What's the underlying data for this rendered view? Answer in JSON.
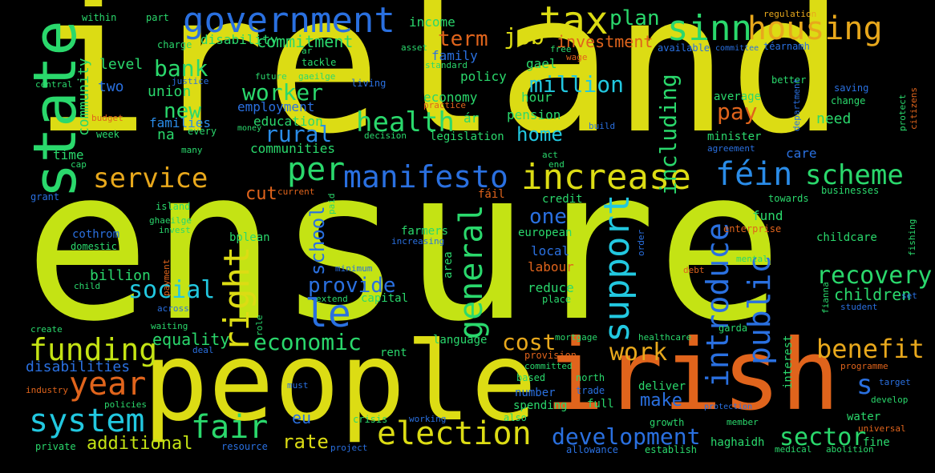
{
  "wordcloud": {
    "words": [
      {
        "text": "ireland",
        "color": "#dcdc14"
      },
      {
        "text": "ensure",
        "color": "#c4e314"
      },
      {
        "text": "people",
        "color": "#dcdc14"
      },
      {
        "text": "irish",
        "color": "#e0641c"
      },
      {
        "text": "state",
        "color": "#2ad86c"
      },
      {
        "text": "government",
        "color": "#2a70e0"
      },
      {
        "text": "tax",
        "color": "#dcdc14"
      },
      {
        "text": "sinn",
        "color": "#2ad86c"
      },
      {
        "text": "housing",
        "color": "#e8a81c"
      },
      {
        "text": "manifesto",
        "color": "#2a70e0"
      },
      {
        "text": "increase",
        "color": "#dcdc14"
      },
      {
        "text": "féin",
        "color": "#2a8ce8"
      },
      {
        "text": "scheme",
        "color": "#2ad86c"
      },
      {
        "text": "service",
        "color": "#e8a81c"
      },
      {
        "text": "per",
        "color": "#2ad86c"
      },
      {
        "text": "election",
        "color": "#dcdc14"
      },
      {
        "text": "fair",
        "color": "#2ad86c"
      },
      {
        "text": "system",
        "color": "#22c8e0"
      },
      {
        "text": "year",
        "color": "#e0641c"
      },
      {
        "text": "funding",
        "color": "#c4e314"
      },
      {
        "text": "health",
        "color": "#2ad86c"
      },
      {
        "text": "support",
        "color": "#22c8e0"
      },
      {
        "text": "introduce",
        "color": "#2a70e0"
      },
      {
        "text": "public",
        "color": "#2a70e0"
      },
      {
        "text": "le",
        "color": "#2a70e0"
      },
      {
        "text": "right",
        "color": "#dcdc14"
      },
      {
        "text": "general",
        "color": "#2ad86c"
      },
      {
        "text": "benefit",
        "color": "#e8a81c"
      },
      {
        "text": "work",
        "color": "#e8a81c"
      },
      {
        "text": "development",
        "color": "#2a70e0"
      },
      {
        "text": "sector",
        "color": "#2ad86c"
      },
      {
        "text": "recovery",
        "color": "#2ad86c"
      },
      {
        "text": "economic",
        "color": "#2ad86c"
      },
      {
        "text": "cost",
        "color": "#e8a81c"
      },
      {
        "text": "s",
        "color": "#2a70e0"
      },
      {
        "text": "social",
        "color": "#22c8e0"
      },
      {
        "text": "provide",
        "color": "#2a70e0"
      },
      {
        "text": "school",
        "color": "#2a70e0"
      },
      {
        "text": "million",
        "color": "#22c8e0"
      },
      {
        "text": "job",
        "color": "#dcdc14"
      },
      {
        "text": "plan",
        "color": "#2ad86c"
      },
      {
        "text": "term",
        "color": "#e0641c"
      },
      {
        "text": "bank",
        "color": "#2ad86c"
      },
      {
        "text": "worker",
        "color": "#2ad86c"
      },
      {
        "text": "new",
        "color": "#2ad86c"
      },
      {
        "text": "rural",
        "color": "#2a8ce8"
      },
      {
        "text": "pay",
        "color": "#e0641c"
      },
      {
        "text": "including",
        "color": "#2ad86c"
      },
      {
        "text": "commitment",
        "color": "#2ad86c"
      },
      {
        "text": "investment",
        "color": "#e0641c"
      },
      {
        "text": "home",
        "color": "#22c8e0"
      },
      {
        "text": "one",
        "color": "#2a70e0"
      },
      {
        "text": "cut",
        "color": "#e0641c"
      },
      {
        "text": "make",
        "color": "#2a70e0"
      },
      {
        "text": "rate",
        "color": "#dcdc14"
      },
      {
        "text": "additional",
        "color": "#c4e314"
      },
      {
        "text": "eu",
        "color": "#2a70e0"
      },
      {
        "text": "children",
        "color": "#2ad86c"
      },
      {
        "text": "disabilities",
        "color": "#2a70e0"
      },
      {
        "text": "equality",
        "color": "#2ad86c"
      },
      {
        "text": "billion",
        "color": "#2ad86c"
      },
      {
        "text": "community",
        "color": "#2ad86c"
      },
      {
        "text": "two",
        "color": "#2a70e0"
      },
      {
        "text": "union",
        "color": "#2ad86c"
      },
      {
        "text": "level",
        "color": "#2ad86c"
      },
      {
        "text": "disability",
        "color": "#2ad86c"
      },
      {
        "text": "families",
        "color": "#2a8ce8"
      },
      {
        "text": "education",
        "color": "#2ad86c"
      },
      {
        "text": "employment",
        "color": "#2a70e0"
      },
      {
        "text": "communities",
        "color": "#2ad86c"
      },
      {
        "text": "na",
        "color": "#2ad86c"
      },
      {
        "text": "time",
        "color": "#2ad86c"
      },
      {
        "text": "income",
        "color": "#2ad86c"
      },
      {
        "text": "family",
        "color": "#2a70e0"
      },
      {
        "text": "policy",
        "color": "#2ad86c"
      },
      {
        "text": "economy",
        "color": "#2ad86c"
      },
      {
        "text": "gael",
        "color": "#2ad86c"
      },
      {
        "text": "hour",
        "color": "#2ad86c"
      },
      {
        "text": "pension",
        "color": "#2ad86c"
      },
      {
        "text": "ár",
        "color": "#2ad86c"
      },
      {
        "text": "legislation",
        "color": "#2ad86c"
      },
      {
        "text": "need",
        "color": "#2ad86c"
      },
      {
        "text": "average",
        "color": "#2ad86c"
      },
      {
        "text": "minister",
        "color": "#2ad86c"
      },
      {
        "text": "care",
        "color": "#2a70e0"
      },
      {
        "text": "fund",
        "color": "#2ad86c"
      },
      {
        "text": "local",
        "color": "#2a70e0"
      },
      {
        "text": "labour",
        "color": "#e0641c"
      },
      {
        "text": "reduce",
        "color": "#2ad86c"
      },
      {
        "text": "european",
        "color": "#2ad86c"
      },
      {
        "text": "farmers",
        "color": "#2ad86c"
      },
      {
        "text": "credit",
        "color": "#2ad86c"
      },
      {
        "text": "capital",
        "color": "#2ad86c"
      },
      {
        "text": "language",
        "color": "#2ad86c"
      },
      {
        "text": "rent",
        "color": "#2ad86c"
      },
      {
        "text": "number",
        "color": "#2a70e0"
      },
      {
        "text": "spending",
        "color": "#2ad86c"
      },
      {
        "text": "deliver",
        "color": "#2ad86c"
      },
      {
        "text": "full",
        "color": "#2ad86c"
      },
      {
        "text": "water",
        "color": "#2ad86c"
      },
      {
        "text": "fine",
        "color": "#2ad86c"
      },
      {
        "text": "haghaidh",
        "color": "#2ad86c"
      },
      {
        "text": "childcare",
        "color": "#2ad86c"
      },
      {
        "text": "cothrom",
        "color": "#2a70e0"
      },
      {
        "text": "bplean",
        "color": "#2ad86c"
      },
      {
        "text": "businesses",
        "color": "#2ad86c"
      },
      {
        "text": "towards",
        "color": "#2ad86c"
      },
      {
        "text": "enterprise",
        "color": "#e0641c"
      },
      {
        "text": "saving",
        "color": "#2a70e0"
      },
      {
        "text": "change",
        "color": "#2ad86c"
      },
      {
        "text": "better",
        "color": "#2ad86c"
      },
      {
        "text": "téarnamh",
        "color": "#2a70e0"
      },
      {
        "text": "available",
        "color": "#2a70e0"
      },
      {
        "text": "regulation",
        "color": "#e8a81c"
      },
      {
        "text": "within",
        "color": "#2ad86c"
      },
      {
        "text": "part",
        "color": "#2ad86c"
      },
      {
        "text": "charge",
        "color": "#2ad86c"
      },
      {
        "text": "justice",
        "color": "#2a70e0"
      },
      {
        "text": "central",
        "color": "#2ad86c"
      },
      {
        "text": "budget",
        "color": "#e0641c"
      },
      {
        "text": "week",
        "color": "#2ad86c"
      },
      {
        "text": "every",
        "color": "#2ad86c"
      },
      {
        "text": "many",
        "color": "#2ad86c"
      },
      {
        "text": "cap",
        "color": "#2ad86c"
      },
      {
        "text": "grant",
        "color": "#2a70e0"
      },
      {
        "text": "island",
        "color": "#2ad86c"
      },
      {
        "text": "ghaeilge",
        "color": "#2ad86c"
      },
      {
        "text": "invest",
        "color": "#2ad86c"
      },
      {
        "text": "domestic",
        "color": "#2ad86c"
      },
      {
        "text": "payment",
        "color": "#e0641c"
      },
      {
        "text": "child",
        "color": "#2ad86c"
      },
      {
        "text": "across",
        "color": "#2a70e0"
      },
      {
        "text": "waiting",
        "color": "#2ad86c"
      },
      {
        "text": "create",
        "color": "#2ad86c"
      },
      {
        "text": "deal",
        "color": "#2a70e0"
      },
      {
        "text": "industry",
        "color": "#e0641c"
      },
      {
        "text": "policies",
        "color": "#2ad86c"
      },
      {
        "text": "private",
        "color": "#2ad86c"
      },
      {
        "text": "resource",
        "color": "#2a70e0"
      },
      {
        "text": "project",
        "color": "#2a70e0"
      },
      {
        "text": "working",
        "color": "#2a70e0"
      },
      {
        "text": "crisis",
        "color": "#2ad86c"
      },
      {
        "text": "also",
        "color": "#2ad86c"
      },
      {
        "text": "allowance",
        "color": "#2a70e0"
      },
      {
        "text": "establish",
        "color": "#2ad86c"
      },
      {
        "text": "medical",
        "color": "#2ad86c"
      },
      {
        "text": "abolition",
        "color": "#2ad86c"
      },
      {
        "text": "universal",
        "color": "#e0641c"
      },
      {
        "text": "develop",
        "color": "#2ad86c"
      },
      {
        "text": "target",
        "color": "#2a70e0"
      },
      {
        "text": "programme",
        "color": "#e0641c"
      },
      {
        "text": "student",
        "color": "#2a70e0"
      },
      {
        "text": "set",
        "color": "#2a70e0"
      },
      {
        "text": "mental",
        "color": "#2ad86c"
      },
      {
        "text": "debt",
        "color": "#e0641c"
      },
      {
        "text": "order",
        "color": "#2a70e0"
      },
      {
        "text": "fishing",
        "color": "#2ad86c"
      },
      {
        "text": "protect",
        "color": "#2ad86c"
      },
      {
        "text": "citizens",
        "color": "#e0641c"
      },
      {
        "text": "department",
        "color": "#2a70e0"
      },
      {
        "text": "build",
        "color": "#2a70e0"
      },
      {
        "text": "agreement",
        "color": "#2a70e0"
      },
      {
        "text": "act",
        "color": "#2ad86c"
      },
      {
        "text": "end",
        "color": "#2ad86c"
      },
      {
        "text": "fáil",
        "color": "#e0641c"
      },
      {
        "text": "current",
        "color": "#e0641c"
      },
      {
        "text": "paid",
        "color": "#2ad86c"
      },
      {
        "text": "increasing",
        "color": "#2a70e0"
      },
      {
        "text": "minimum",
        "color": "#2a70e0"
      },
      {
        "text": "area",
        "color": "#2ad86c"
      },
      {
        "text": "extend",
        "color": "#2ad86c"
      },
      {
        "text": "role",
        "color": "#2ad86c"
      },
      {
        "text": "place",
        "color": "#2ad86c"
      },
      {
        "text": "provision",
        "color": "#e0641c"
      },
      {
        "text": "committed",
        "color": "#2ad86c"
      },
      {
        "text": "based",
        "color": "#2ad86c"
      },
      {
        "text": "north",
        "color": "#2ad86c"
      },
      {
        "text": "trade",
        "color": "#2a70e0"
      },
      {
        "text": "mortgage",
        "color": "#2ad86c"
      },
      {
        "text": "healthcare",
        "color": "#2ad86c"
      },
      {
        "text": "garda",
        "color": "#2ad86c"
      },
      {
        "text": "interest",
        "color": "#2ad86c"
      },
      {
        "text": "fianna",
        "color": "#2ad86c"
      },
      {
        "text": "growth",
        "color": "#2ad86c"
      },
      {
        "text": "protection",
        "color": "#2a70e0"
      },
      {
        "text": "member",
        "color": "#2ad86c"
      },
      {
        "text": "must",
        "color": "#2a70e0"
      },
      {
        "text": "decision",
        "color": "#2ad86c"
      },
      {
        "text": "money",
        "color": "#2ad86c"
      },
      {
        "text": "practice",
        "color": "#e0641c"
      },
      {
        "text": "living",
        "color": "#2a70e0"
      },
      {
        "text": "future",
        "color": "#2ad86c"
      },
      {
        "text": "gaeilge",
        "color": "#2ad86c"
      },
      {
        "text": "tackle",
        "color": "#2ad86c"
      },
      {
        "text": "ar",
        "color": "#2ad86c"
      },
      {
        "text": "asset",
        "color": "#2ad86c"
      },
      {
        "text": "standard",
        "color": "#2ad86c"
      },
      {
        "text": "free",
        "color": "#2ad86c"
      },
      {
        "text": "wage",
        "color": "#e0641c"
      },
      {
        "text": "committee",
        "color": "#2a70e0"
      }
    ]
  }
}
